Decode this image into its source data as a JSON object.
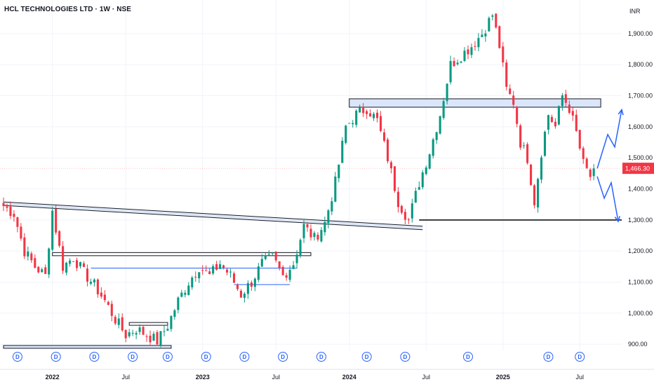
{
  "header": {
    "symbol": "HCL TECHNOLOGIES LTD · 1W · NSE",
    "currency": "INR"
  },
  "colors": {
    "up": "#089981",
    "down": "#f23645",
    "zone_fill": "#dbe6fb",
    "zone_stroke": "#131722",
    "arrow": "#2962ff",
    "price_badge": "#f23645",
    "grid": "#f0f3fa",
    "axis_text": "#131722",
    "marker": "#2962ff"
  },
  "chart_data": {
    "type": "candlestick",
    "title": "HCL TECHNOLOGIES LTD · 1W · NSE",
    "currency": "INR",
    "y_axis_position": "right",
    "ylim": [
      880,
      1990
    ],
    "xlim": [
      0,
      176
    ],
    "y_ticks": [
      {
        "value": 1900,
        "label": "1,900.00"
      },
      {
        "value": 1800,
        "label": "1,800.00"
      },
      {
        "value": 1700,
        "label": "1,700.00"
      },
      {
        "value": 1600,
        "label": "1,600.00"
      },
      {
        "value": 1500,
        "label": "1,500.00"
      },
      {
        "value": 1400,
        "label": "1,400.00"
      },
      {
        "value": 1300,
        "label": "1,300.00"
      },
      {
        "value": 1200,
        "label": "1,200.00"
      },
      {
        "value": 1100,
        "label": "1,100.00"
      },
      {
        "value": 1000,
        "label": "1,000.00"
      },
      {
        "value": 900,
        "label": "900.00"
      }
    ],
    "x_ticks": [
      {
        "week": 14,
        "label": "2022",
        "bold": true
      },
      {
        "week": 35,
        "label": "Jul",
        "bold": false
      },
      {
        "week": 57,
        "label": "2023",
        "bold": true
      },
      {
        "week": 78,
        "label": "Jul",
        "bold": false
      },
      {
        "week": 99,
        "label": "2024",
        "bold": true
      },
      {
        "week": 121,
        "label": "Jul",
        "bold": false
      },
      {
        "week": 143,
        "label": "2025",
        "bold": true
      },
      {
        "week": 165,
        "label": "Jul",
        "bold": false
      }
    ],
    "dividend_markers": {
      "label": "D",
      "weeks": [
        4,
        15,
        26,
        37,
        47,
        58,
        69,
        80,
        91,
        104,
        115,
        133,
        156,
        165
      ]
    },
    "last_price": {
      "value": 1466.3,
      "label": "1,466.30"
    },
    "close_anchors": [
      [
        0,
        1345
      ],
      [
        3,
        1320
      ],
      [
        6,
        1200
      ],
      [
        9,
        1150
      ],
      [
        12,
        1120
      ],
      [
        14,
        1330
      ],
      [
        17,
        1150
      ],
      [
        20,
        1180
      ],
      [
        23,
        1130
      ],
      [
        26,
        1090
      ],
      [
        29,
        1040
      ],
      [
        32,
        980
      ],
      [
        35,
        930
      ],
      [
        38,
        950
      ],
      [
        41,
        930
      ],
      [
        44,
        910
      ],
      [
        47,
        960
      ],
      [
        50,
        1040
      ],
      [
        53,
        1100
      ],
      [
        56,
        1150
      ],
      [
        59,
        1120
      ],
      [
        62,
        1160
      ],
      [
        65,
        1120
      ],
      [
        68,
        1060
      ],
      [
        71,
        1100
      ],
      [
        74,
        1160
      ],
      [
        77,
        1180
      ],
      [
        80,
        1120
      ],
      [
        83,
        1160
      ],
      [
        86,
        1280
      ],
      [
        89,
        1240
      ],
      [
        92,
        1290
      ],
      [
        95,
        1420
      ],
      [
        98,
        1600
      ],
      [
        101,
        1640
      ],
      [
        104,
        1660
      ],
      [
        107,
        1620
      ],
      [
        110,
        1500
      ],
      [
        113,
        1360
      ],
      [
        116,
        1300
      ],
      [
        119,
        1420
      ],
      [
        122,
        1520
      ],
      [
        125,
        1640
      ],
      [
        128,
        1800
      ],
      [
        131,
        1830
      ],
      [
        134,
        1860
      ],
      [
        137,
        1900
      ],
      [
        140,
        1960
      ],
      [
        142,
        1860
      ],
      [
        144,
        1720
      ],
      [
        146,
        1680
      ],
      [
        148,
        1550
      ],
      [
        150,
        1500
      ],
      [
        152,
        1360
      ],
      [
        154,
        1520
      ],
      [
        156,
        1640
      ],
      [
        158,
        1600
      ],
      [
        160,
        1700
      ],
      [
        162,
        1660
      ],
      [
        164,
        1580
      ],
      [
        166,
        1480
      ],
      [
        168,
        1440
      ],
      [
        169,
        1466
      ]
    ],
    "horizontal_line": {
      "value": 1300,
      "start_week": 119
    },
    "zones": [
      {
        "start_week": 99,
        "end_week": 171,
        "low": 1663,
        "high": 1690,
        "fill": "#dbe6fb"
      },
      {
        "start_week": 14,
        "end_week": 88,
        "low": 1185,
        "high": 1195,
        "fill": "#ffffff"
      },
      {
        "start_week": 36,
        "end_week": 47,
        "low": 962,
        "high": 970,
        "fill": "#ffffff"
      },
      {
        "start_week": 0,
        "end_week": 48,
        "low": 888,
        "high": 896,
        "fill": "#dbe6fb"
      }
    ],
    "trendline": {
      "start": [
        0,
        1358
      ],
      "end": [
        120,
        1280
      ]
    },
    "support_lines": [
      {
        "start_week": 25,
        "end_week": 84,
        "value": 1145
      },
      {
        "start_week": 66,
        "end_week": 82,
        "value": 1092
      }
    ],
    "projection_arrows": [
      {
        "points": [
          [
            170,
            1466
          ],
          [
            173,
            1575
          ],
          [
            175,
            1535
          ],
          [
            177,
            1655
          ]
        ]
      },
      {
        "points": [
          [
            170,
            1440
          ],
          [
            172,
            1370
          ],
          [
            174,
            1420
          ],
          [
            176,
            1295
          ]
        ]
      }
    ]
  }
}
